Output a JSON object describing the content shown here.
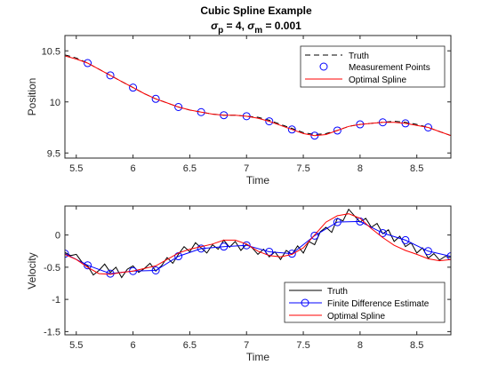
{
  "figure": {
    "title": "Cubic Spline Example",
    "subtitle": {
      "sigma_symbol": "σ",
      "p_sub": "p",
      "p_text": " = 4, ",
      "m_sub": "m",
      "m_text": " = 0.001"
    }
  },
  "colors": {
    "truth": "#000000",
    "finite_difference": "#0000ff",
    "measurement": "#0000ff",
    "spline": "#ff0000"
  },
  "chart_data": [
    {
      "type": "line",
      "xlabel": "Time",
      "ylabel": "Position",
      "xlim": [
        5.4,
        8.8
      ],
      "ylim": [
        9.45,
        10.65
      ],
      "xticks": [
        5.5,
        6,
        6.5,
        7,
        7.5,
        8,
        8.5
      ],
      "xtick_labels": [
        "5.5",
        "6",
        "6.5",
        "7",
        "7.5",
        "8",
        "8.5"
      ],
      "yticks": [
        9.5,
        10,
        10.5
      ],
      "ytick_labels": [
        "9.5",
        "10",
        "10.5"
      ],
      "legend_position": "top-right",
      "series": [
        {
          "name": "Truth",
          "style": "dashed",
          "x": [
            5.4,
            5.5,
            5.6,
            5.7,
            5.8,
            5.9,
            6.0,
            6.1,
            6.2,
            6.3,
            6.4,
            6.5,
            6.6,
            6.7,
            6.8,
            6.9,
            7.0,
            7.1,
            7.2,
            7.3,
            7.4,
            7.5,
            7.6,
            7.7,
            7.8,
            7.9,
            8.0,
            8.1,
            8.2,
            8.3,
            8.4,
            8.5,
            8.6,
            8.7,
            8.8
          ],
          "y": [
            10.46,
            10.43,
            10.38,
            10.32,
            10.26,
            10.2,
            10.14,
            10.08,
            10.03,
            9.99,
            9.95,
            9.92,
            9.9,
            9.88,
            9.87,
            9.87,
            9.86,
            9.85,
            9.82,
            9.78,
            9.74,
            9.7,
            9.68,
            9.69,
            9.72,
            9.76,
            9.78,
            9.79,
            9.8,
            9.81,
            9.8,
            9.78,
            9.75,
            9.71,
            9.67
          ]
        },
        {
          "name": "Measurement Points",
          "style": "markers",
          "x": [
            5.6,
            5.8,
            6.0,
            6.2,
            6.4,
            6.6,
            6.8,
            7.0,
            7.2,
            7.4,
            7.6,
            7.8,
            8.0,
            8.2,
            8.4,
            8.6
          ],
          "y": [
            10.38,
            10.26,
            10.14,
            10.03,
            9.95,
            9.9,
            9.87,
            9.86,
            9.81,
            9.73,
            9.67,
            9.72,
            9.78,
            9.8,
            9.79,
            9.75
          ]
        },
        {
          "name": "Optimal Spline",
          "style": "solid",
          "x": [
            5.4,
            5.5,
            5.6,
            5.7,
            5.8,
            5.9,
            6.0,
            6.1,
            6.2,
            6.3,
            6.4,
            6.5,
            6.6,
            6.7,
            6.8,
            6.9,
            7.0,
            7.1,
            7.2,
            7.3,
            7.4,
            7.5,
            7.6,
            7.7,
            7.8,
            7.9,
            8.0,
            8.1,
            8.2,
            8.3,
            8.4,
            8.5,
            8.6,
            8.7,
            8.8
          ],
          "y": [
            10.45,
            10.42,
            10.38,
            10.32,
            10.26,
            10.2,
            10.14,
            10.08,
            10.03,
            9.99,
            9.95,
            9.92,
            9.9,
            9.88,
            9.87,
            9.87,
            9.86,
            9.84,
            9.81,
            9.77,
            9.73,
            9.69,
            9.67,
            9.68,
            9.72,
            9.76,
            9.78,
            9.79,
            9.8,
            9.8,
            9.79,
            9.77,
            9.75,
            9.71,
            9.67
          ]
        }
      ]
    },
    {
      "type": "line",
      "xlabel": "Time",
      "ylabel": "Velocity",
      "xlim": [
        5.4,
        8.8
      ],
      "ylim": [
        -1.55,
        0.45
      ],
      "xticks": [
        5.5,
        6,
        6.5,
        7,
        7.5,
        8,
        8.5
      ],
      "xtick_labels": [
        "5.5",
        "6",
        "6.5",
        "7",
        "7.5",
        "8",
        "8.5"
      ],
      "yticks": [
        -1.5,
        -1,
        -0.5,
        0
      ],
      "ytick_labels": [
        "-1.5",
        "-1",
        "-0.5",
        "0"
      ],
      "legend_position": "bottom-right",
      "series": [
        {
          "name": "Truth",
          "style": "solid",
          "x": [
            5.4,
            5.45,
            5.5,
            5.55,
            5.6,
            5.65,
            5.7,
            5.75,
            5.8,
            5.85,
            5.9,
            5.95,
            6.0,
            6.05,
            6.1,
            6.15,
            6.2,
            6.25,
            6.3,
            6.35,
            6.4,
            6.45,
            6.5,
            6.55,
            6.6,
            6.65,
            6.7,
            6.75,
            6.8,
            6.85,
            6.9,
            6.95,
            7.0,
            7.05,
            7.1,
            7.15,
            7.2,
            7.25,
            7.3,
            7.35,
            7.4,
            7.45,
            7.5,
            7.55,
            7.6,
            7.65,
            7.7,
            7.75,
            7.8,
            7.85,
            7.9,
            7.95,
            8.0,
            8.05,
            8.1,
            8.15,
            8.2,
            8.25,
            8.3,
            8.35,
            8.4,
            8.45,
            8.5,
            8.55,
            8.6,
            8.65,
            8.7,
            8.75,
            8.8
          ],
          "y": [
            -0.27,
            -0.32,
            -0.3,
            -0.42,
            -0.48,
            -0.62,
            -0.55,
            -0.45,
            -0.58,
            -0.5,
            -0.66,
            -0.53,
            -0.48,
            -0.58,
            -0.52,
            -0.44,
            -0.56,
            -0.48,
            -0.35,
            -0.44,
            -0.3,
            -0.18,
            -0.26,
            -0.12,
            -0.2,
            -0.28,
            -0.15,
            -0.22,
            -0.08,
            -0.19,
            -0.1,
            -0.24,
            -0.14,
            -0.2,
            -0.3,
            -0.22,
            -0.34,
            -0.26,
            -0.38,
            -0.24,
            -0.3,
            -0.17,
            -0.28,
            -0.1,
            -0.15,
            0.05,
            0.12,
            0.04,
            0.26,
            0.22,
            0.4,
            0.3,
            0.2,
            0.26,
            0.12,
            0.18,
            0.02,
            0.08,
            -0.1,
            -0.02,
            -0.18,
            -0.12,
            -0.28,
            -0.2,
            -0.36,
            -0.29,
            -0.39,
            -0.33,
            -0.35
          ]
        },
        {
          "name": "Finite Difference Estimate",
          "style": "markers-line",
          "x": [
            5.4,
            5.6,
            5.8,
            6.0,
            6.2,
            6.4,
            6.6,
            6.8,
            7.0,
            7.2,
            7.4,
            7.6,
            7.8,
            8.0,
            8.2,
            8.4,
            8.6,
            8.8
          ],
          "y": [
            -0.29,
            -0.47,
            -0.6,
            -0.56,
            -0.55,
            -0.33,
            -0.21,
            -0.18,
            -0.16,
            -0.26,
            -0.29,
            -0.01,
            0.2,
            0.21,
            0.03,
            -0.08,
            -0.25,
            -0.33
          ]
        },
        {
          "name": "Optimal Spline",
          "style": "solid",
          "x": [
            5.4,
            5.5,
            5.6,
            5.7,
            5.8,
            5.9,
            6.0,
            6.1,
            6.2,
            6.3,
            6.4,
            6.5,
            6.6,
            6.7,
            6.8,
            6.9,
            7.0,
            7.1,
            7.2,
            7.3,
            7.4,
            7.5,
            7.6,
            7.7,
            7.8,
            7.9,
            8.0,
            8.1,
            8.2,
            8.3,
            8.4,
            8.5,
            8.6,
            8.7,
            8.8
          ],
          "y": [
            -0.3,
            -0.38,
            -0.5,
            -0.6,
            -0.61,
            -0.58,
            -0.56,
            -0.52,
            -0.48,
            -0.38,
            -0.28,
            -0.22,
            -0.18,
            -0.14,
            -0.08,
            -0.08,
            -0.14,
            -0.25,
            -0.32,
            -0.34,
            -0.3,
            -0.2,
            0.0,
            0.2,
            0.3,
            0.33,
            0.26,
            0.1,
            -0.04,
            -0.16,
            -0.24,
            -0.3,
            -0.37,
            -0.4,
            -0.38
          ]
        }
      ]
    }
  ]
}
